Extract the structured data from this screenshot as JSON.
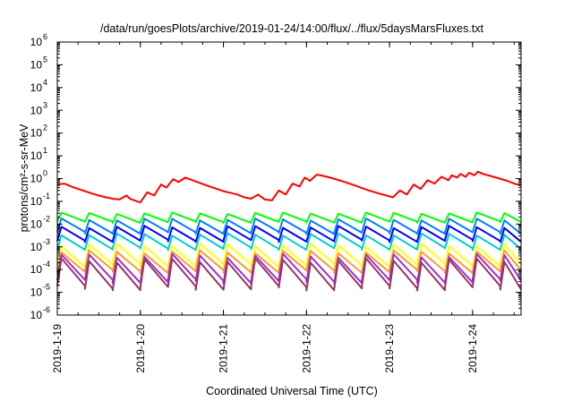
{
  "chart_data": {
    "type": "line",
    "title": "/data/run/goesPlots/archive/2019-01-24/14:00/flux/../flux/5daysMarsFluxes.txt",
    "xlabel": "Coordinated Universal Time (UTC)",
    "ylabel": "protons/cm²-s-sr-MeV",
    "yscale": "log",
    "ylim": [
      1e-06,
      1000000.0
    ],
    "xlim": [
      "2019-01-19T00:00",
      "2019-01-24T14:00"
    ],
    "x_ticks": [
      "2019-1-19",
      "2019-1-20",
      "2019-1-21",
      "2019-1-22",
      "2019-1-23",
      "2019-1-24"
    ],
    "y_ticks": [
      {
        "base": "10",
        "exp": "-6"
      },
      {
        "base": "10",
        "exp": "-5"
      },
      {
        "base": "10",
        "exp": "-4"
      },
      {
        "base": "10",
        "exp": "-3"
      },
      {
        "base": "10",
        "exp": "-2"
      },
      {
        "base": "10",
        "exp": "-1"
      },
      {
        "base": "10",
        "exp": "0"
      },
      {
        "base": "10",
        "exp": "1"
      },
      {
        "base": "10",
        "exp": "2"
      },
      {
        "base": "10",
        "exp": "3"
      },
      {
        "base": "10",
        "exp": "4"
      },
      {
        "base": "10",
        "exp": "5"
      },
      {
        "base": "10",
        "exp": "6"
      }
    ],
    "grid": false,
    "series": [
      {
        "color": "#ff0000",
        "style": "smooth",
        "points": [
          [
            "2019-01-19T00:00",
            0.55
          ],
          [
            "2019-01-19T02:00",
            0.6
          ],
          [
            "2019-01-19T04:00",
            0.45
          ],
          [
            "2019-01-19T06:00",
            0.35
          ],
          [
            "2019-01-19T08:00",
            0.28
          ],
          [
            "2019-01-19T10:00",
            0.22
          ],
          [
            "2019-01-19T12:00",
            0.18
          ],
          [
            "2019-01-19T14:00",
            0.15
          ],
          [
            "2019-01-19T16:00",
            0.13
          ],
          [
            "2019-01-19T18:00",
            0.12
          ],
          [
            "2019-01-19T20:00",
            0.18
          ],
          [
            "2019-01-19T21:00",
            0.13
          ],
          [
            "2019-01-19T23:00",
            0.1
          ],
          [
            "2019-01-20T00:00",
            0.09
          ],
          [
            "2019-01-20T02:00",
            0.25
          ],
          [
            "2019-01-20T04:00",
            0.18
          ],
          [
            "2019-01-20T06:00",
            0.55
          ],
          [
            "2019-01-20T07:30",
            0.4
          ],
          [
            "2019-01-20T09:30",
            0.95
          ],
          [
            "2019-01-20T11:00",
            0.7
          ],
          [
            "2019-01-20T13:00",
            1.1
          ],
          [
            "2019-01-20T16:00",
            0.75
          ],
          [
            "2019-01-20T20:00",
            0.45
          ],
          [
            "2019-01-21T00:00",
            0.28
          ],
          [
            "2019-01-21T04:00",
            0.2
          ],
          [
            "2019-01-21T06:00",
            0.15
          ],
          [
            "2019-01-21T08:00",
            0.13
          ],
          [
            "2019-01-21T10:00",
            0.2
          ],
          [
            "2019-01-21T12:00",
            0.12
          ],
          [
            "2019-01-21T14:00",
            0.11
          ],
          [
            "2019-01-21T16:00",
            0.3
          ],
          [
            "2019-01-21T18:00",
            0.2
          ],
          [
            "2019-01-21T20:00",
            0.6
          ],
          [
            "2019-01-21T22:00",
            0.45
          ],
          [
            "2019-01-21T23:30",
            1.1
          ],
          [
            "2019-01-22T01:00",
            0.8
          ],
          [
            "2019-01-22T03:00",
            1.5
          ],
          [
            "2019-01-22T06:00",
            1.2
          ],
          [
            "2019-01-22T10:00",
            0.8
          ],
          [
            "2019-01-22T14:00",
            0.5
          ],
          [
            "2019-01-22T18:00",
            0.3
          ],
          [
            "2019-01-22T22:00",
            0.2
          ],
          [
            "2019-01-23T01:00",
            0.15
          ],
          [
            "2019-01-23T03:00",
            0.3
          ],
          [
            "2019-01-23T05:00",
            0.2
          ],
          [
            "2019-01-23T07:00",
            0.55
          ],
          [
            "2019-01-23T09:00",
            0.35
          ],
          [
            "2019-01-23T11:00",
            0.85
          ],
          [
            "2019-01-23T13:00",
            0.6
          ],
          [
            "2019-01-23T15:00",
            1.2
          ],
          [
            "2019-01-23T17:00",
            0.85
          ],
          [
            "2019-01-23T18:00",
            1.4
          ],
          [
            "2019-01-23T19:30",
            1.1
          ],
          [
            "2019-01-23T20:30",
            1.6
          ],
          [
            "2019-01-23T22:00",
            1.2
          ],
          [
            "2019-01-23T23:00",
            1.8
          ],
          [
            "2019-01-24T00:30",
            1.4
          ],
          [
            "2019-01-24T01:30",
            2.0
          ],
          [
            "2019-01-24T03:00",
            1.6
          ],
          [
            "2019-01-24T06:00",
            1.2
          ],
          [
            "2019-01-24T10:00",
            0.8
          ],
          [
            "2019-01-24T12:00",
            0.6
          ],
          [
            "2019-01-24T13:00",
            0.55
          ],
          [
            "2019-01-24T14:00",
            0.5
          ]
        ]
      },
      {
        "color": "#00ff00",
        "style": "sawtooth",
        "period_hours": 8,
        "low": 0.012,
        "high": 0.03
      },
      {
        "color": "#007ffe",
        "style": "sawtooth",
        "period_hours": 8,
        "low": 0.004,
        "high": 0.016
      },
      {
        "color": "#0000ff",
        "style": "sawtooth",
        "period_hours": 8,
        "low": 0.0018,
        "high": 0.0075
      },
      {
        "color": "#00cccc",
        "style": "sawtooth",
        "period_hours": 8,
        "low": 0.0008,
        "high": 0.0035
      },
      {
        "color": "#ffff00",
        "style": "sawtooth",
        "period_hours": 8,
        "low": 0.00015,
        "high": 0.0012
      },
      {
        "color": "#ff9933",
        "style": "sawtooth",
        "period_hours": 8,
        "low": 8e-05,
        "high": 0.0006
      },
      {
        "color": "#9933cc",
        "style": "sawtooth",
        "period_hours": 8,
        "low": 3e-05,
        "high": 0.0004
      },
      {
        "color": "#993366",
        "style": "sawtooth",
        "period_hours": 8,
        "low": 1.5e-05,
        "high": 0.00025
      }
    ]
  }
}
